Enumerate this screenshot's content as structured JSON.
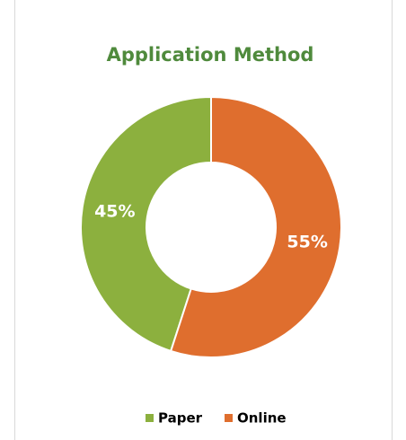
{
  "chart_data": {
    "type": "donut",
    "title": "Application Method",
    "categories": [
      "Paper",
      "Online"
    ],
    "values": [
      45,
      55
    ],
    "value_labels": [
      "45%",
      "55%"
    ],
    "colors": [
      "#8cb03e",
      "#df6e2e"
    ],
    "legend": "bottom"
  }
}
